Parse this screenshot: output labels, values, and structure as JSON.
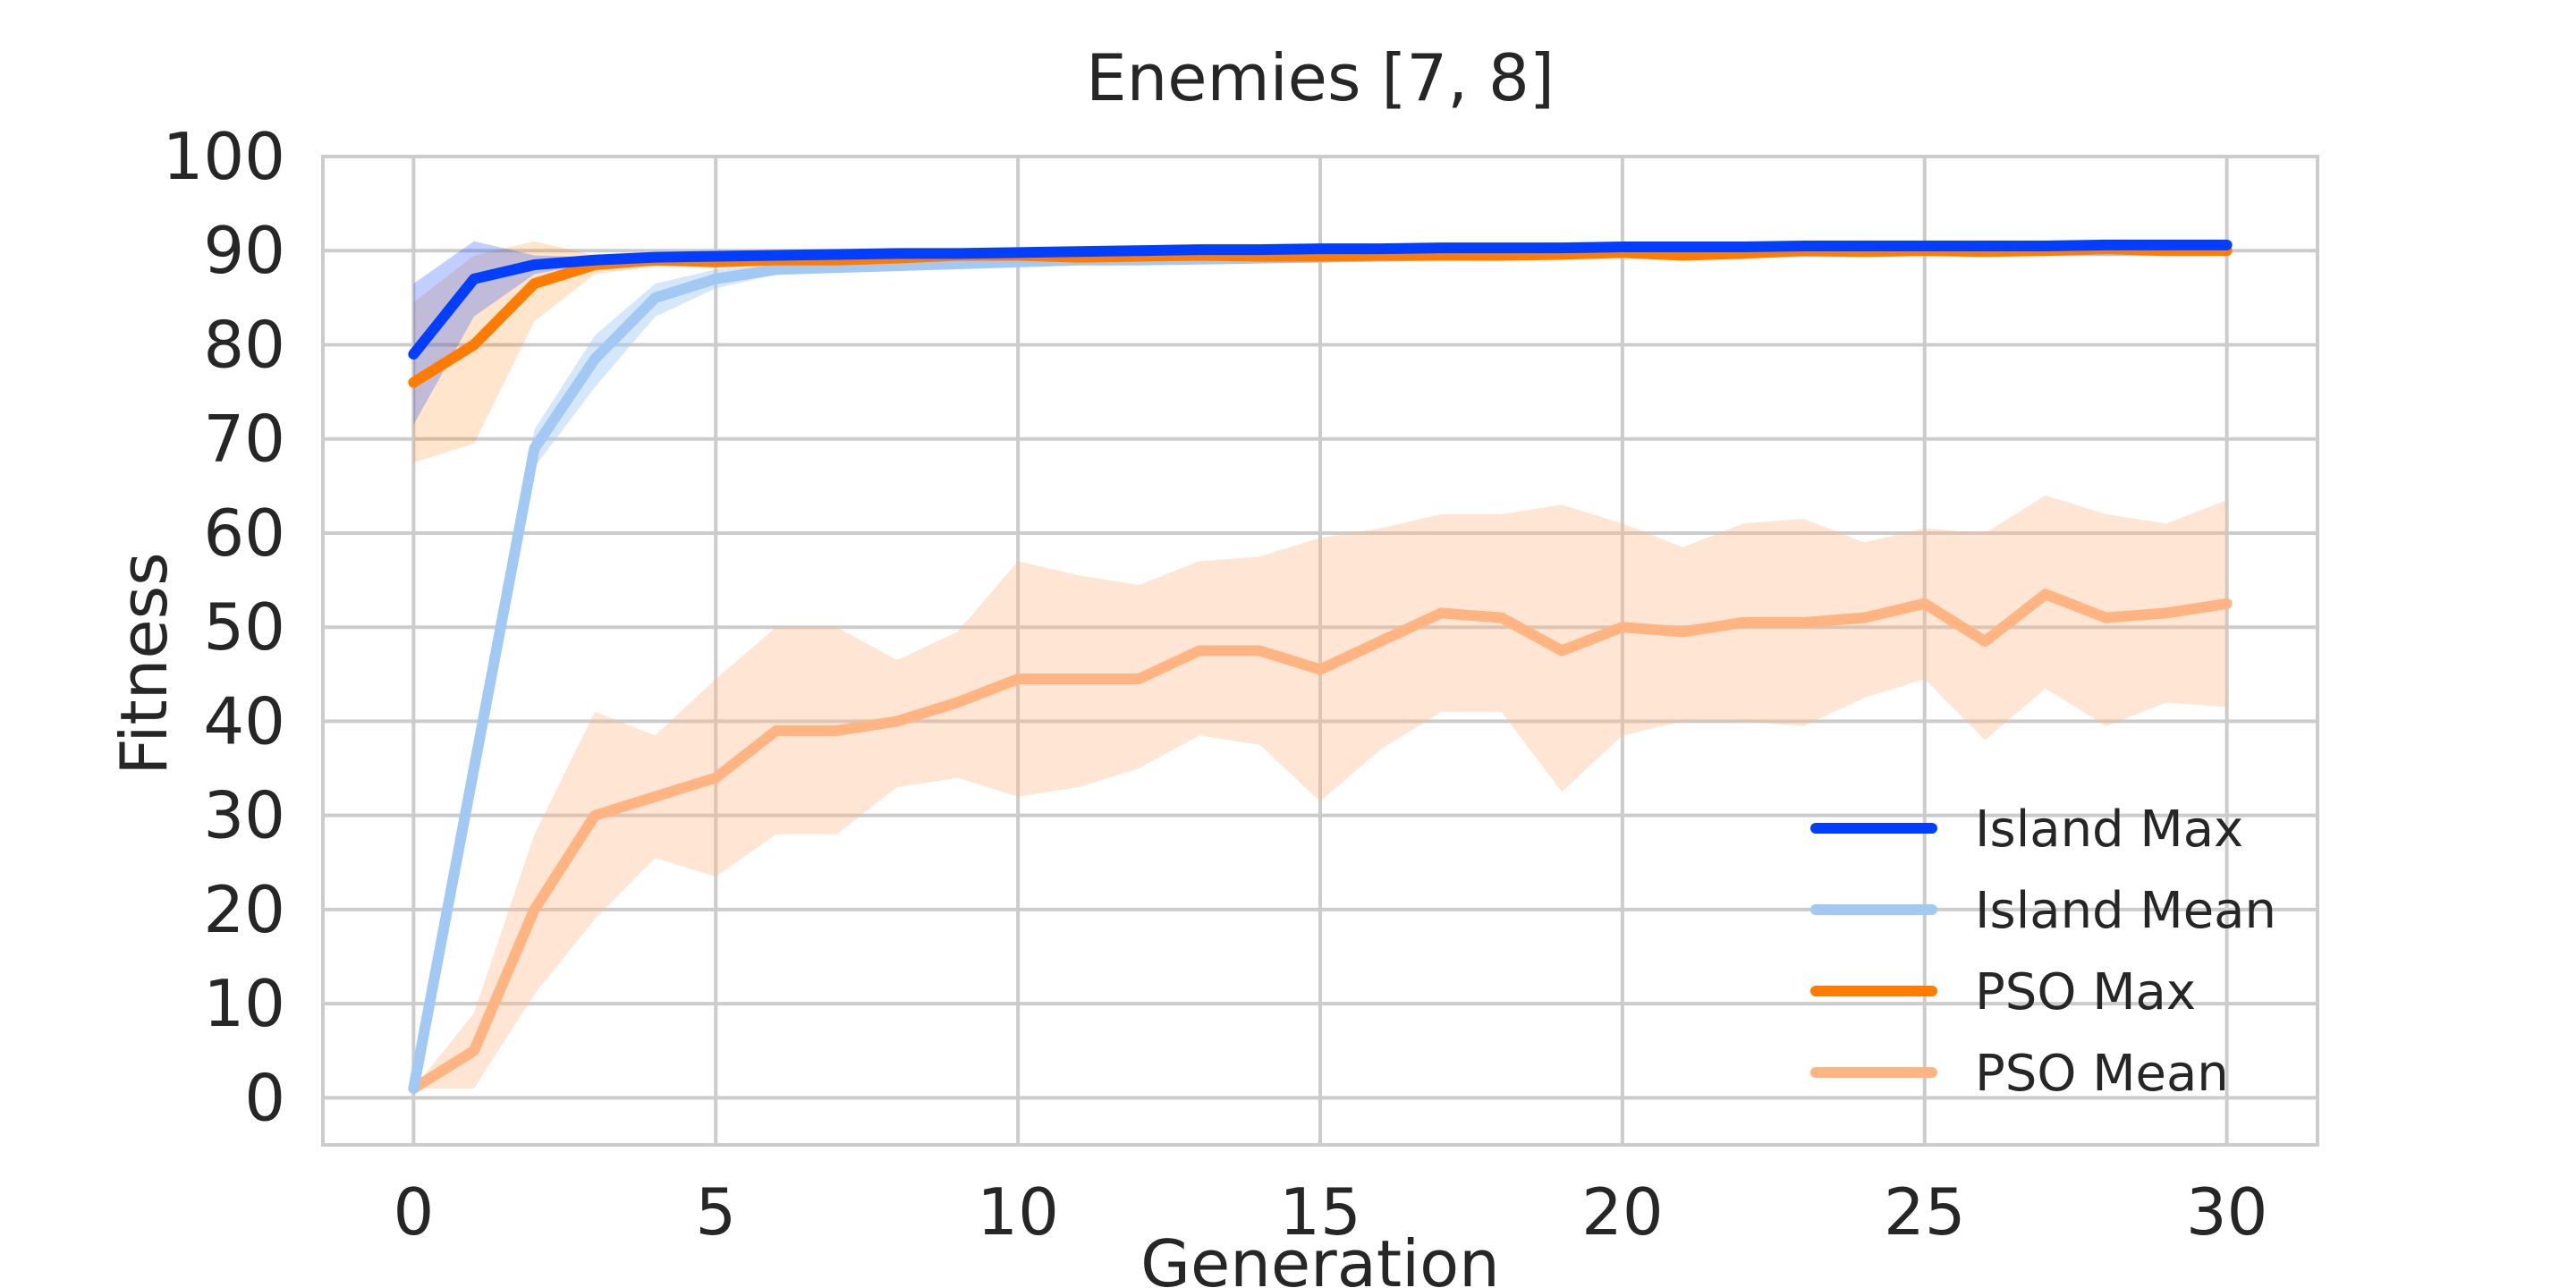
{
  "chart_data": {
    "type": "line",
    "title": "Enemies [7, 8]",
    "xlabel": "Generation",
    "ylabel": "Fitness",
    "xlim": [
      -1.5,
      31.5
    ],
    "ylim": [
      -5,
      100
    ],
    "xticks": [
      0,
      5,
      10,
      15,
      20,
      25,
      30
    ],
    "yticks": [
      0,
      10,
      20,
      30,
      40,
      50,
      60,
      70,
      80,
      90,
      100
    ],
    "grid": true,
    "legend_position": "lower-right",
    "x": [
      0,
      1,
      2,
      3,
      4,
      5,
      6,
      7,
      8,
      9,
      10,
      11,
      12,
      13,
      14,
      15,
      16,
      17,
      18,
      19,
      20,
      21,
      22,
      23,
      24,
      25,
      26,
      27,
      28,
      29,
      30
    ],
    "series": [
      {
        "name": "PSO Mean",
        "color": "#ffb482",
        "band_color": "#ffb482",
        "band_opacity": 0.35,
        "values": [
          1,
          5,
          20,
          30,
          32,
          34,
          39,
          39,
          40,
          42,
          44.5,
          44.5,
          44.5,
          47.5,
          47.5,
          45.5,
          48.5,
          51.5,
          51,
          47.5,
          50,
          49.5,
          50.5,
          50.5,
          51,
          52.5,
          48.5,
          53.5,
          51,
          51.5,
          52.5
        ],
        "lower": [
          1,
          1,
          11,
          19,
          25.5,
          23.5,
          28,
          28,
          33,
          34,
          32,
          33,
          35,
          38.5,
          37.5,
          31.5,
          37,
          41,
          41,
          32.5,
          38.5,
          40,
          40,
          39.5,
          42.5,
          44.5,
          38,
          43.5,
          39.5,
          42,
          41.5
        ],
        "upper": [
          1,
          9,
          28,
          41,
          38.5,
          44.5,
          50,
          50,
          46.5,
          49.5,
          57,
          55.5,
          54.5,
          57,
          57.5,
          59.5,
          60.5,
          62,
          62,
          63,
          61,
          58.5,
          61,
          61.5,
          59,
          60.5,
          60,
          64,
          62,
          61,
          63.5
        ]
      },
      {
        "name": "Island Mean",
        "color": "#a1c9f4",
        "band_color": "#a1c9f4",
        "band_opacity": 0.45,
        "values": [
          1,
          35,
          69,
          78.5,
          85,
          87,
          88,
          88.2,
          88.4,
          88.6,
          88.8,
          89,
          89,
          89.1,
          89.2,
          89.3,
          89.4,
          89.5,
          89.6,
          89.7,
          89.8,
          89.8,
          89.8,
          89.9,
          89.9,
          90,
          90,
          90,
          90,
          90,
          90
        ],
        "lower": [
          1,
          33,
          67,
          75.5,
          83,
          86,
          87.5,
          87.8,
          88,
          88.2,
          88.4,
          88.6,
          88.6,
          88.7,
          88.8,
          88.9,
          89,
          89.1,
          89.2,
          89.3,
          89.4,
          89.4,
          89.4,
          89.5,
          89.5,
          89.6,
          89.6,
          89.6,
          89.6,
          89.6,
          89.6
        ],
        "upper": [
          1,
          37,
          71,
          81,
          86.5,
          88,
          88.5,
          88.6,
          88.8,
          89,
          89.2,
          89.4,
          89.4,
          89.5,
          89.6,
          89.7,
          89.8,
          89.9,
          90,
          90.1,
          90.2,
          90.2,
          90.2,
          90.3,
          90.3,
          90.4,
          90.4,
          90.4,
          90.4,
          90.4,
          90.4
        ]
      },
      {
        "name": "PSO Max",
        "color": "#ff7c00",
        "band_color": "#ff7c00",
        "band_opacity": 0.2,
        "values": [
          76,
          80,
          86.5,
          88.5,
          89,
          88.8,
          89,
          89,
          89.2,
          89.5,
          89.5,
          89.3,
          89.4,
          89.5,
          89.4,
          89.4,
          89.5,
          89.5,
          89.5,
          89.6,
          89.8,
          89.5,
          89.7,
          90,
          89.9,
          90,
          89.9,
          90,
          90.2,
          90,
          90
        ],
        "lower": [
          67.5,
          69.5,
          82.5,
          87.5,
          88.3,
          88.4,
          88.5,
          88.6,
          88.8,
          89.1,
          89.1,
          89,
          89,
          89.1,
          89,
          89,
          89.1,
          89.1,
          89.1,
          89.2,
          89.4,
          89.1,
          89.3,
          89.6,
          89.5,
          89.6,
          89.5,
          89.6,
          89.8,
          89.6,
          89.6
        ],
        "upper": [
          84.5,
          89.5,
          91,
          89.5,
          89.5,
          89.2,
          89.5,
          89.4,
          89.6,
          89.9,
          89.9,
          89.6,
          89.8,
          89.9,
          89.8,
          89.8,
          89.9,
          89.9,
          89.9,
          90,
          90.2,
          89.9,
          90.1,
          90.4,
          90.3,
          90.4,
          90.3,
          90.4,
          90.6,
          90.4,
          90.4
        ]
      },
      {
        "name": "Island Max",
        "color": "#023eff",
        "band_color": "#023eff",
        "band_opacity": 0.25,
        "values": [
          79,
          87,
          88.5,
          89,
          89.3,
          89.4,
          89.5,
          89.6,
          89.7,
          89.7,
          89.8,
          89.9,
          90,
          90.1,
          90.1,
          90.2,
          90.2,
          90.3,
          90.3,
          90.3,
          90.4,
          90.4,
          90.4,
          90.5,
          90.5,
          90.5,
          90.5,
          90.5,
          90.6,
          90.6,
          90.6
        ],
        "lower": [
          71.5,
          83,
          87.5,
          88.7,
          89.1,
          89.2,
          89.3,
          89.4,
          89.5,
          89.5,
          89.6,
          89.7,
          89.8,
          89.9,
          89.9,
          90,
          90,
          90.1,
          90.1,
          90.1,
          90.2,
          90.2,
          90.2,
          90.3,
          90.3,
          90.3,
          90.3,
          90.3,
          90.4,
          90.4,
          90.4
        ],
        "upper": [
          86.5,
          91,
          89.5,
          89.3,
          89.5,
          89.6,
          89.7,
          89.8,
          89.9,
          89.9,
          90,
          90.1,
          90.2,
          90.3,
          90.3,
          90.4,
          90.4,
          90.5,
          90.5,
          90.5,
          90.6,
          90.6,
          90.6,
          90.7,
          90.7,
          90.7,
          90.7,
          90.7,
          90.8,
          90.8,
          90.8
        ]
      }
    ],
    "legend_order": [
      "Island Max",
      "Island Mean",
      "PSO Max",
      "PSO Mean"
    ]
  },
  "style": {
    "grid_color": "#cccccc",
    "frame_color": "#cccccc",
    "text_color": "#262626",
    "background": "#ffffff"
  }
}
